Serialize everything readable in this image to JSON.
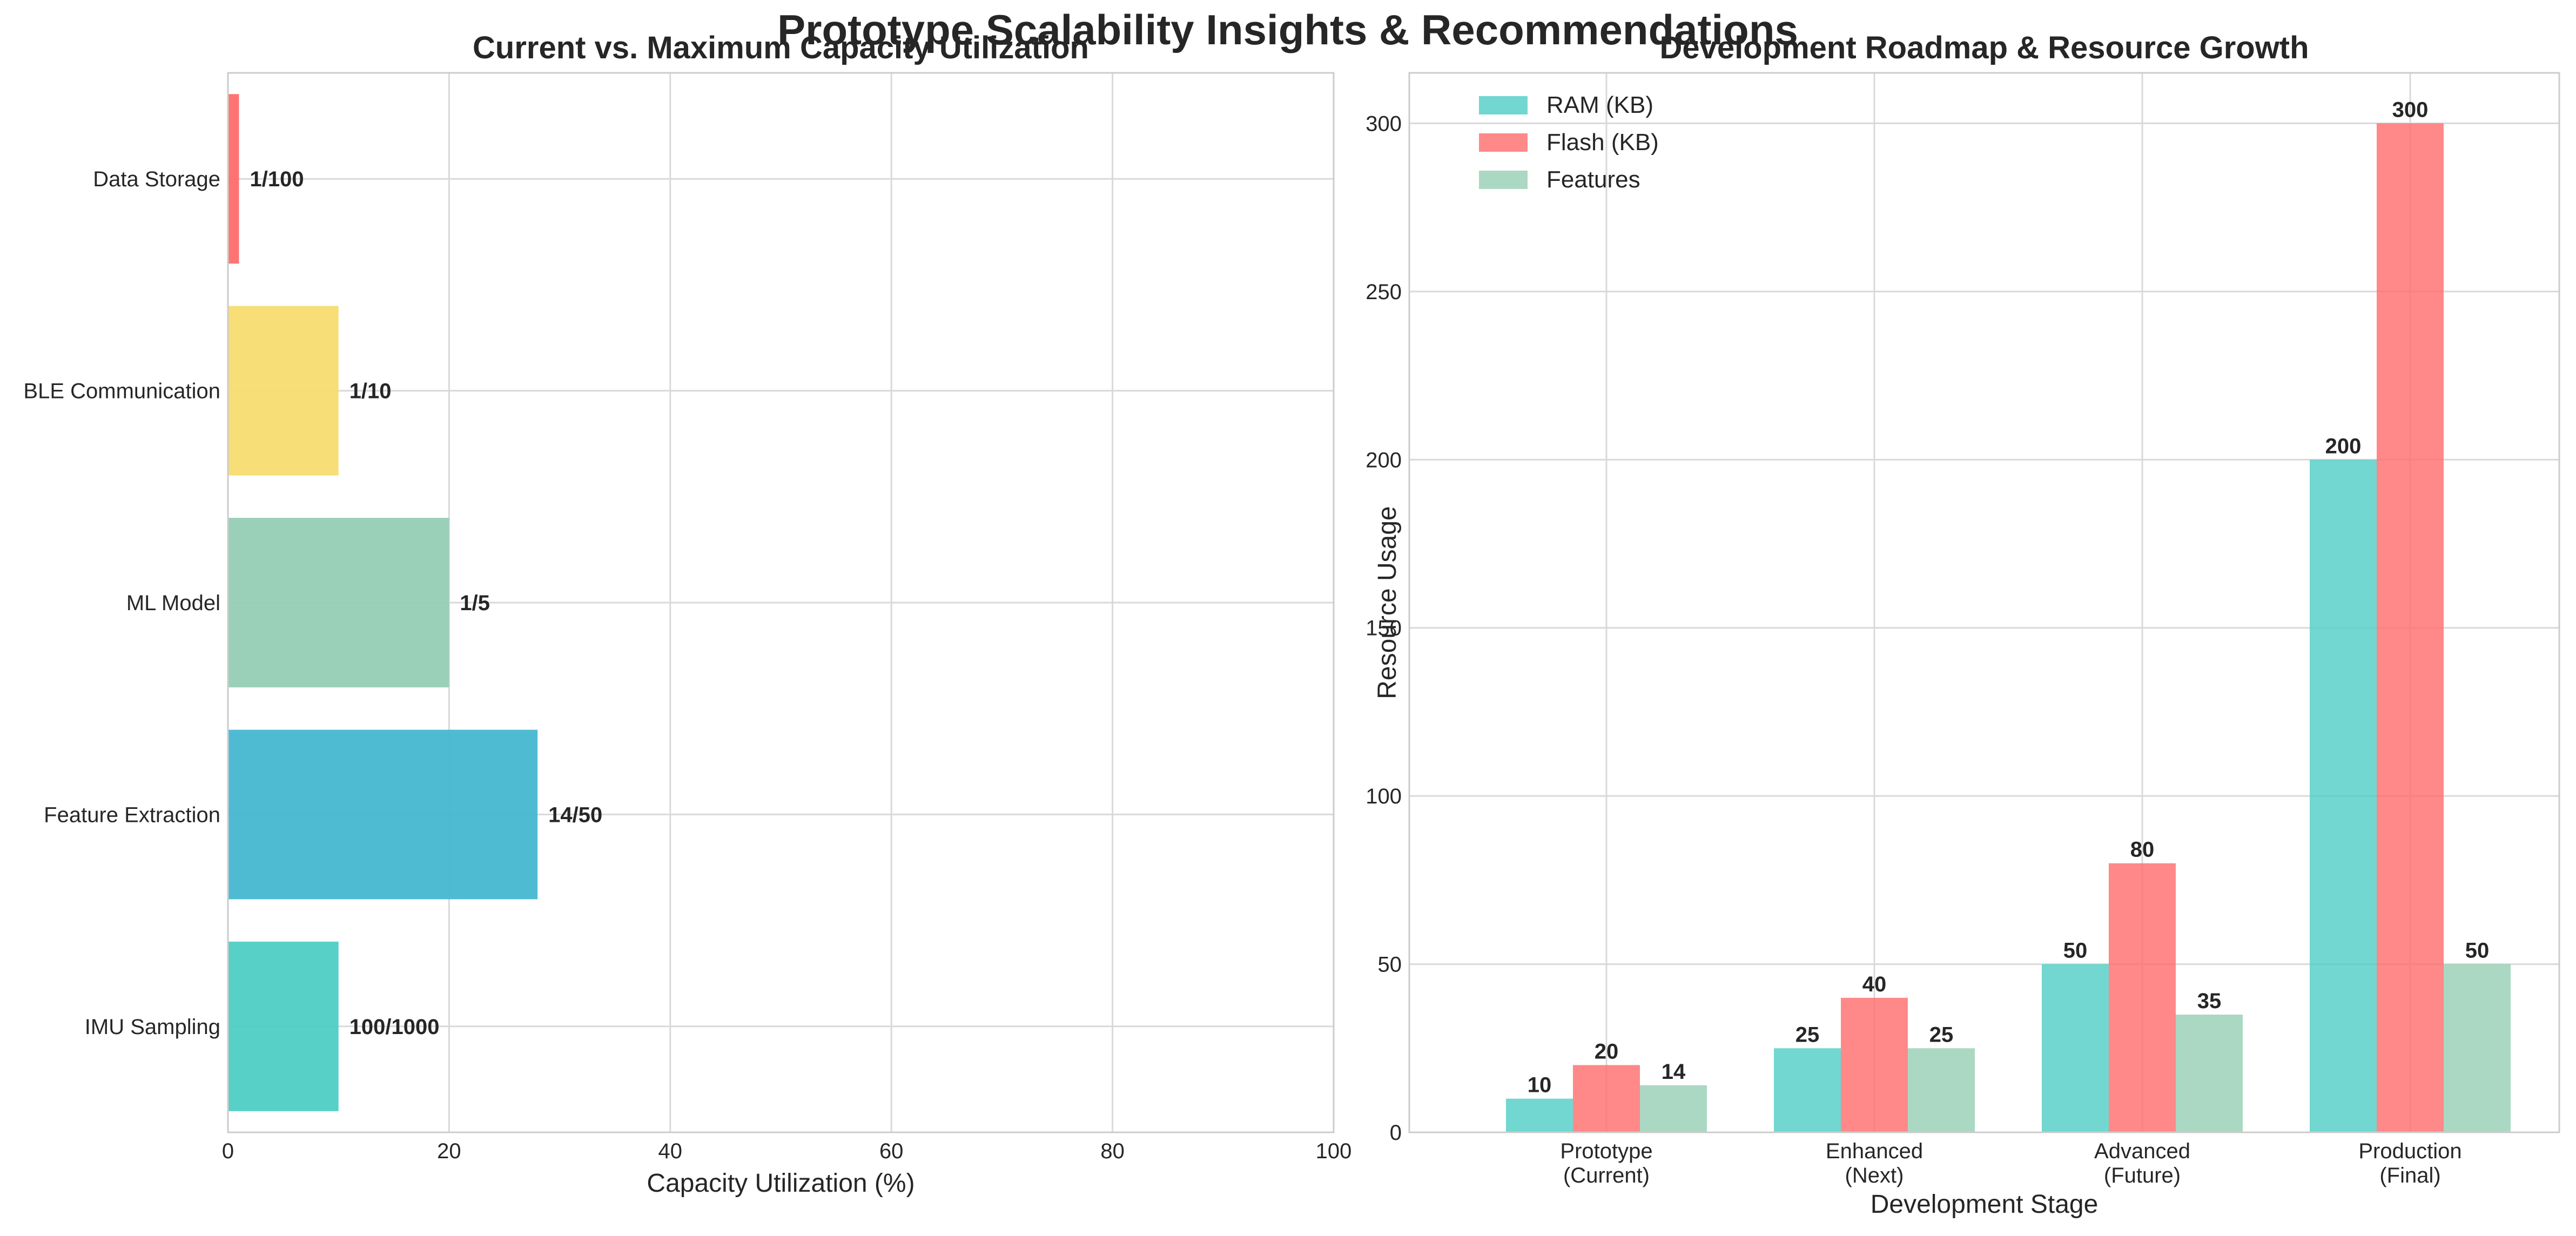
{
  "figure": {
    "suptitle": "Prototype Scalability Insights & Recommendations"
  },
  "chart_data": [
    {
      "type": "bar",
      "orientation": "horizontal",
      "title": "Current vs. Maximum Capacity Utilization",
      "xlabel": "Capacity Utilization (%)",
      "ylabel": "",
      "xlim": [
        0,
        100
      ],
      "xticks": [
        0,
        20,
        40,
        60,
        80,
        100
      ],
      "grid": true,
      "categories": [
        "IMU Sampling",
        "Feature Extraction",
        "ML Model",
        "BLE Communication",
        "Data Storage"
      ],
      "values": [
        10,
        28,
        20,
        10,
        1
      ],
      "labels": [
        "100/1000",
        "14/50",
        "1/5",
        "1/10",
        "1/100"
      ],
      "colors": [
        "#4ECDC4",
        "#45B7D1",
        "#96CEB4",
        "#F7DC6F",
        "#FF6B6B"
      ]
    },
    {
      "type": "bar",
      "orientation": "vertical",
      "title": "Development Roadmap & Resource Growth",
      "xlabel": "Development Stage",
      "ylabel": "Resource Usage",
      "ylim": [
        0,
        315
      ],
      "yticks": [
        0,
        50,
        100,
        150,
        200,
        250,
        300
      ],
      "grid": true,
      "legend_position": "top-left",
      "categories": [
        [
          "Prototype",
          "(Current)"
        ],
        [
          "Enhanced",
          "(Next)"
        ],
        [
          "Advanced",
          "(Future)"
        ],
        [
          "Production",
          "(Final)"
        ]
      ],
      "series": [
        {
          "name": "RAM (KB)",
          "values": [
            10,
            25,
            50,
            200
          ],
          "color": "#4ECDC4"
        },
        {
          "name": "Flash (KB)",
          "values": [
            20,
            40,
            80,
            300
          ],
          "color": "#FF6B6B"
        },
        {
          "name": "Features",
          "values": [
            14,
            25,
            35,
            50
          ],
          "color": "#96CEB4"
        }
      ]
    }
  ]
}
